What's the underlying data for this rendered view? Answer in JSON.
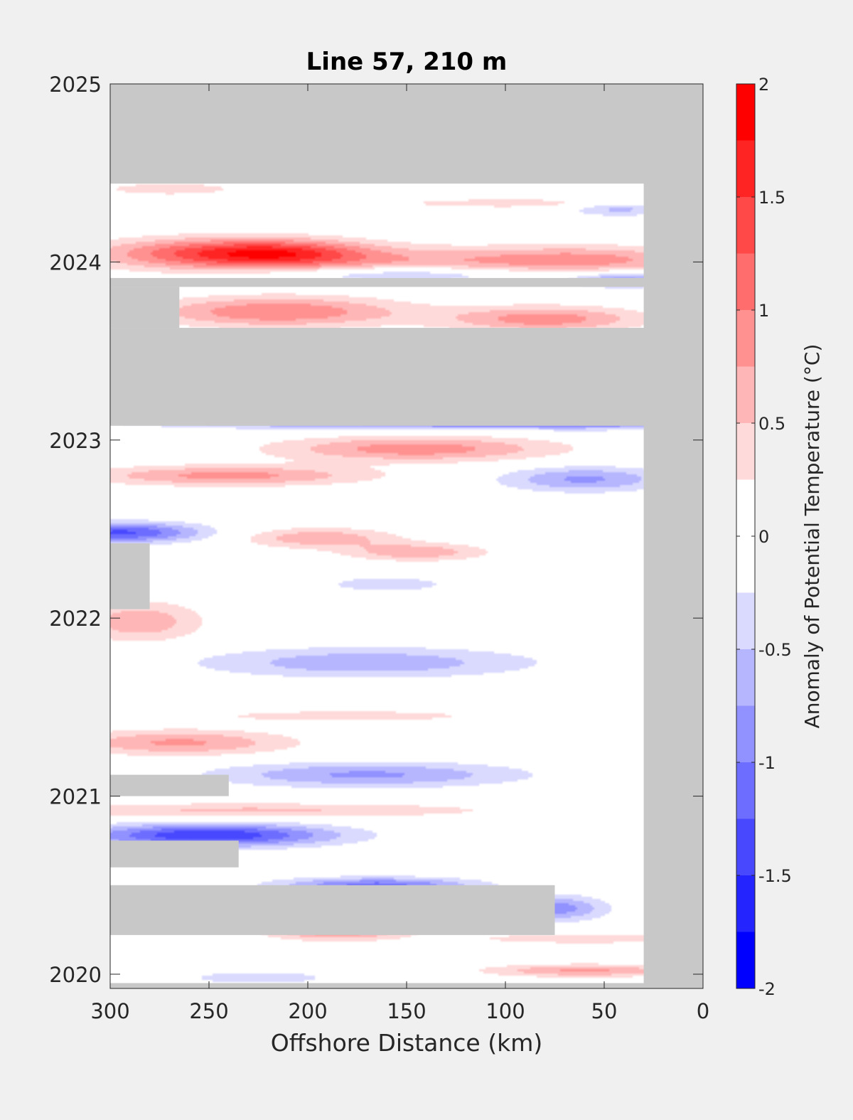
{
  "chart_data": {
    "type": "heatmap",
    "title": "Line 57, 210 m",
    "xlabel": "Offshore Distance (km)",
    "ylabel": "",
    "xlim": [
      300,
      0
    ],
    "x_reversed": true,
    "ylim": [
      2019.92,
      2025.0
    ],
    "x_ticks": [
      "300",
      "250",
      "200",
      "150",
      "100",
      "50",
      "0"
    ],
    "x_tick_values": [
      300,
      250,
      200,
      150,
      100,
      50,
      0
    ],
    "y_ticks": [
      "2020",
      "2021",
      "2022",
      "2023",
      "2024",
      "2025"
    ],
    "y_tick_values": [
      2020,
      2021,
      2022,
      2023,
      2024,
      2025
    ],
    "colorbar": {
      "label": "Anomaly of Potential Temperature (°C)",
      "range": [
        -2,
        2
      ],
      "levels": [
        -2,
        -1.75,
        -1.5,
        -1.25,
        -1,
        -0.75,
        -0.5,
        -0.25,
        0,
        0.25,
        0.5,
        0.75,
        1,
        1.25,
        1.5,
        1.75,
        2
      ],
      "tick_labels": [
        "-2",
        "-1.5",
        "-1",
        "-0.5",
        "0",
        "0.5",
        "1",
        "1.5",
        "2"
      ],
      "tick_values": [
        -2,
        -1.5,
        -1,
        -0.5,
        0,
        0.5,
        1,
        1.5,
        2
      ],
      "colors": [
        "#0000ff",
        "#2424ff",
        "#4848ff",
        "#6d6dff",
        "#9191ff",
        "#b6b6ff",
        "#dadaff",
        "#ffffff",
        "#ffffff",
        "#ffdada",
        "#ffb6b6",
        "#ff9191",
        "#ff6d6d",
        "#ff4848",
        "#ff2424",
        "#ff0000"
      ]
    },
    "missing_color": "#c8c8c8",
    "missing_regions": [
      {
        "x": [
          0,
          300
        ],
        "y": [
          2024.44,
          2025.0
        ]
      },
      {
        "x": [
          0,
          30
        ],
        "y": [
          2019.92,
          2025.0
        ]
      },
      {
        "x": [
          0,
          300
        ],
        "y": [
          2023.08,
          2023.63
        ]
      },
      {
        "x": [
          30,
          300
        ],
        "y": [
          2023.86,
          2023.91
        ]
      },
      {
        "x": [
          265,
          300
        ],
        "y": [
          2023.63,
          2023.86
        ]
      },
      {
        "x": [
          0,
          300
        ],
        "y": [
          2019.92,
          2019.95
        ]
      },
      {
        "x": [
          280,
          300
        ],
        "y": [
          2022.05,
          2022.42
        ]
      },
      {
        "x": [
          240,
          300
        ],
        "y": [
          2021.0,
          2021.12
        ]
      },
      {
        "x": [
          235,
          300
        ],
        "y": [
          2020.6,
          2020.75
        ]
      },
      {
        "x": [
          75,
          300
        ],
        "y": [
          2020.22,
          2020.5
        ]
      }
    ],
    "anomalies": [
      {
        "x": 240,
        "y": 2024.05,
        "sx": 45,
        "sy": 0.06,
        "value": 1.3
      },
      {
        "x": 210,
        "y": 2024.05,
        "sx": 28,
        "sy": 0.05,
        "value": 0.5
      },
      {
        "x": 120,
        "y": 2024.0,
        "sx": 90,
        "sy": 0.06,
        "value": 0.6
      },
      {
        "x": 60,
        "y": 2024.02,
        "sx": 40,
        "sy": 0.05,
        "value": 0.45
      },
      {
        "x": 150,
        "y": 2023.93,
        "sx": 45,
        "sy": 0.03,
        "value": -0.7
      },
      {
        "x": 40,
        "y": 2023.9,
        "sx": 20,
        "sy": 0.03,
        "value": -0.9
      },
      {
        "x": 42,
        "y": 2024.3,
        "sx": 18,
        "sy": 0.03,
        "value": -0.6
      },
      {
        "x": 270,
        "y": 2024.41,
        "sx": 25,
        "sy": 0.025,
        "value": 0.45
      },
      {
        "x": 95,
        "y": 2024.33,
        "sx": 50,
        "sy": 0.02,
        "value": 0.4
      },
      {
        "x": 215,
        "y": 2023.72,
        "sx": 45,
        "sy": 0.06,
        "value": 1.0
      },
      {
        "x": 80,
        "y": 2023.68,
        "sx": 35,
        "sy": 0.05,
        "value": 0.9
      },
      {
        "x": 140,
        "y": 2023.12,
        "sx": 90,
        "sy": 0.035,
        "value": -1.6
      },
      {
        "x": 50,
        "y": 2023.14,
        "sx": 40,
        "sy": 0.04,
        "value": -1.2
      },
      {
        "x": 145,
        "y": 2022.95,
        "sx": 50,
        "sy": 0.05,
        "value": 0.9
      },
      {
        "x": 240,
        "y": 2022.8,
        "sx": 50,
        "sy": 0.04,
        "value": 0.85
      },
      {
        "x": 60,
        "y": 2022.78,
        "sx": 30,
        "sy": 0.05,
        "value": -0.8
      },
      {
        "x": 295,
        "y": 2022.48,
        "sx": 30,
        "sy": 0.04,
        "value": -1.3
      },
      {
        "x": 195,
        "y": 2022.45,
        "sx": 28,
        "sy": 0.04,
        "value": 0.7
      },
      {
        "x": 145,
        "y": 2022.37,
        "sx": 25,
        "sy": 0.035,
        "value": 0.7
      },
      {
        "x": 160,
        "y": 2022.19,
        "sx": 30,
        "sy": 0.04,
        "value": -0.35
      },
      {
        "x": 285,
        "y": 2021.98,
        "sx": 22,
        "sy": 0.08,
        "value": 0.7
      },
      {
        "x": 170,
        "y": 2021.75,
        "sx": 60,
        "sy": 0.06,
        "value": -0.7
      },
      {
        "x": 180,
        "y": 2021.45,
        "sx": 55,
        "sy": 0.025,
        "value": 0.4
      },
      {
        "x": 265,
        "y": 2021.3,
        "sx": 40,
        "sy": 0.05,
        "value": 0.8
      },
      {
        "x": 170,
        "y": 2021.12,
        "sx": 55,
        "sy": 0.05,
        "value": -0.8
      },
      {
        "x": 230,
        "y": 2020.92,
        "sx": 90,
        "sy": 0.03,
        "value": 0.55
      },
      {
        "x": 250,
        "y": 2020.78,
        "sx": 45,
        "sy": 0.045,
        "value": -1.5
      },
      {
        "x": 165,
        "y": 2020.5,
        "sx": 35,
        "sy": 0.03,
        "value": -1.1
      },
      {
        "x": 75,
        "y": 2020.37,
        "sx": 18,
        "sy": 0.05,
        "value": -0.9
      },
      {
        "x": 185,
        "y": 2020.25,
        "sx": 25,
        "sy": 0.04,
        "value": 1.0
      },
      {
        "x": 60,
        "y": 2020.02,
        "sx": 35,
        "sy": 0.025,
        "value": 0.8
      },
      {
        "x": 60,
        "y": 2020.2,
        "sx": 40,
        "sy": 0.02,
        "value": 0.5
      },
      {
        "x": 225,
        "y": 2019.98,
        "sx": 30,
        "sy": 0.03,
        "value": -0.4
      }
    ]
  }
}
